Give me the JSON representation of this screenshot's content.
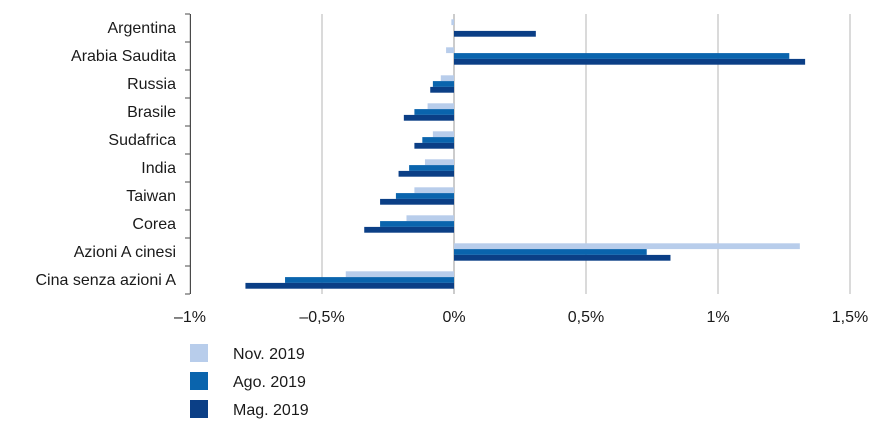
{
  "chart_data": {
    "type": "bar",
    "orientation": "horizontal",
    "categories": [
      "Argentina",
      "Arabia Saudita",
      "Russia",
      "Brasile",
      "Sudafrica",
      "India",
      "Taiwan",
      "Corea ",
      "Azioni A cinesi ",
      "Cina senza azioni A"
    ],
    "series": [
      {
        "name": "Nov. 2019",
        "color": "#b8cdeb",
        "values": [
          -0.01,
          -0.03,
          -0.05,
          -0.1,
          -0.08,
          -0.11,
          -0.15,
          -0.18,
          1.31,
          -0.41
        ]
      },
      {
        "name": "Ago. 2019",
        "color": "#0a64ad",
        "values": [
          0.0,
          1.27,
          -0.08,
          -0.15,
          -0.12,
          -0.17,
          -0.22,
          -0.28,
          0.73,
          -0.64
        ]
      },
      {
        "name": "Mag. 2019",
        "color": "#0b3f86",
        "values": [
          0.31,
          1.33,
          -0.09,
          -0.19,
          -0.15,
          -0.21,
          -0.28,
          -0.34,
          0.82,
          -0.79
        ]
      }
    ],
    "xlim": [
      -1,
      1.5
    ],
    "xticks": [
      -1,
      -0.5,
      0,
      0.5,
      1,
      1.5
    ],
    "xtick_labels": [
      "–1%",
      "–0,5%",
      "0%",
      "0,5%",
      "1%",
      "1,5%"
    ],
    "grid": "vertical",
    "legend": "bottom-left",
    "title": "",
    "xlabel": "",
    "ylabel": ""
  }
}
